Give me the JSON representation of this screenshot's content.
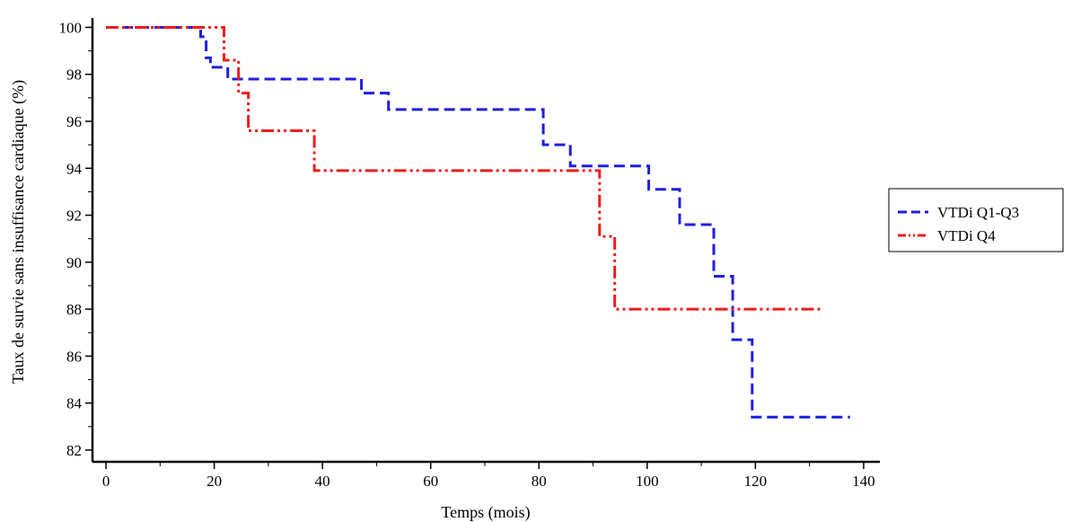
{
  "chart_data": {
    "type": "line",
    "title": "",
    "xlabel": "Temps (mois)",
    "ylabel": "Taux de survie sans insuffisance cardiaque (%)",
    "xlim": [
      -2.5,
      143
    ],
    "ylim": [
      81.5,
      100.4
    ],
    "xticks": [
      0,
      20,
      40,
      60,
      80,
      100,
      120,
      140
    ],
    "yticks": [
      82,
      84,
      86,
      88,
      90,
      92,
      94,
      96,
      98,
      100
    ],
    "grid": false,
    "legend_position": "right",
    "series": [
      {
        "name": "VTDi Q1-Q3",
        "color": "#1f1fe0",
        "dash": "dashed",
        "x": [
          0,
          17.5,
          17.5,
          18.5,
          18.5,
          19.3,
          19.3,
          22.5,
          22.5,
          26.5,
          26.5,
          47.2,
          47.2,
          52.2,
          52.2,
          80.8,
          80.8,
          85.8,
          85.8,
          100.3,
          100.3,
          106.0,
          106.0,
          112.3,
          112.3,
          115.8,
          115.8,
          119.4,
          119.4,
          137.5
        ],
        "y": [
          100,
          100,
          99.6,
          99.6,
          98.7,
          98.7,
          98.3,
          98.3,
          97.8,
          97.8,
          97.8,
          97.8,
          97.2,
          97.2,
          96.5,
          96.5,
          95.0,
          95.0,
          94.1,
          94.1,
          93.1,
          93.1,
          91.6,
          91.6,
          89.4,
          89.4,
          86.7,
          86.7,
          83.4,
          83.4
        ]
      },
      {
        "name": "VTDi Q4",
        "color": "#ee1c1c",
        "dash": "dash-dot-dot",
        "x": [
          0,
          21.8,
          21.8,
          24.5,
          24.5,
          26.3,
          26.3,
          38.5,
          38.5,
          91.2,
          91.2,
          94.0,
          94.0,
          132
        ],
        "y": [
          100,
          100,
          98.6,
          98.6,
          97.2,
          97.2,
          95.6,
          95.6,
          93.9,
          93.9,
          91.1,
          91.1,
          88.0,
          88.0
        ]
      }
    ]
  }
}
